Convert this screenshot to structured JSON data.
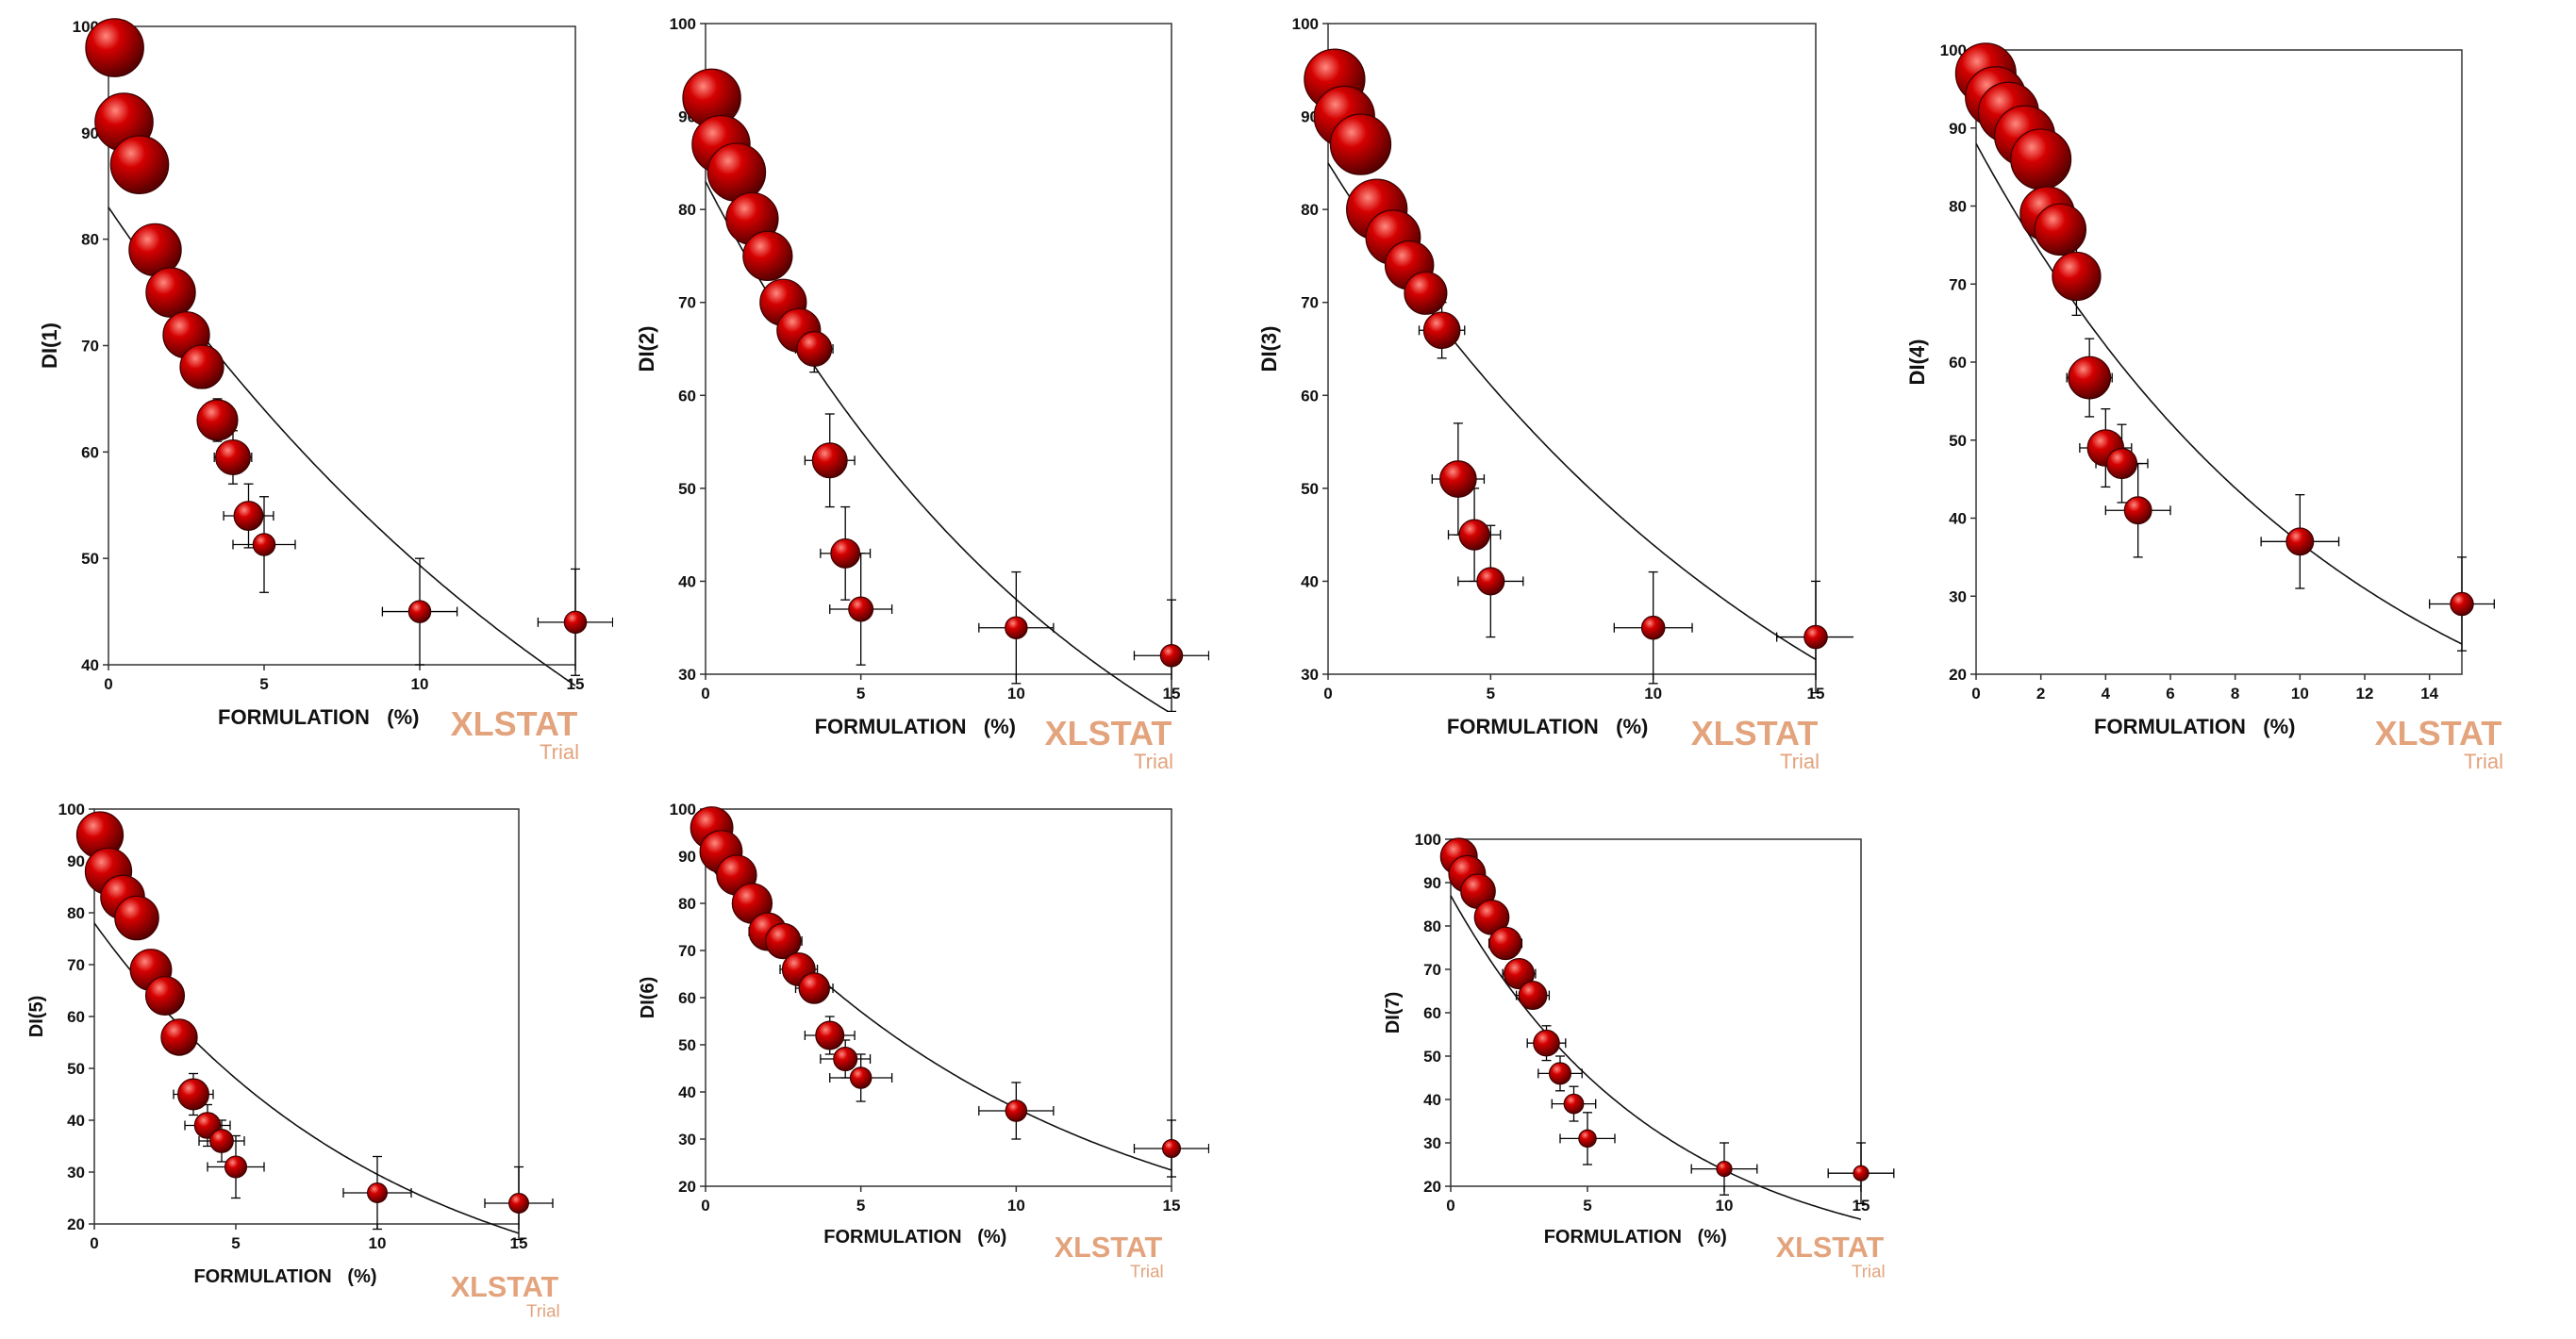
{
  "colors": {
    "bubble": "#d40000",
    "bubble_light": "#ff8a80",
    "bubble_dark": "#5a0000",
    "line": "#111111",
    "frame": "#333333",
    "watermark": "#e3a37c"
  },
  "watermark": {
    "brand": "XLSTAT",
    "edition": "Trial"
  },
  "chart_data": [
    {
      "id": "c1",
      "type": "scatter",
      "title": "",
      "xlabel": "FORMULATION   (%)",
      "ylabel": "DI(1)",
      "xlim": [
        0,
        15
      ],
      "ylim": [
        40,
        100
      ],
      "xticks": [
        0,
        5,
        10,
        15
      ],
      "yticks": [
        40,
        50,
        60,
        70,
        80,
        90,
        100
      ],
      "points": [
        {
          "x": 0.2,
          "y": 98,
          "r": 1.0,
          "ex": 0.6,
          "ey": 2
        },
        {
          "x": 0.5,
          "y": 91,
          "r": 1.0,
          "ex": 0.6,
          "ey": 2
        },
        {
          "x": 1.0,
          "y": 87,
          "r": 1.0,
          "ex": 0.6,
          "ey": 2
        },
        {
          "x": 1.5,
          "y": 79,
          "r": 0.9,
          "ex": 0.6,
          "ey": 2
        },
        {
          "x": 2.0,
          "y": 75,
          "r": 0.85,
          "ex": 0.6,
          "ey": 2
        },
        {
          "x": 2.5,
          "y": 71,
          "r": 0.8,
          "ex": 0.6,
          "ey": 2
        },
        {
          "x": 3.0,
          "y": 68,
          "r": 0.75,
          "ex": 0.6,
          "ey": 2
        },
        {
          "x": 3.5,
          "y": 63,
          "r": 0.7,
          "ex": 0.6,
          "ey": 2
        },
        {
          "x": 4.0,
          "y": 59.5,
          "r": 0.6,
          "ex": 0.6,
          "ey": 2.5
        },
        {
          "x": 4.5,
          "y": 54,
          "r": 0.5,
          "ex": 0.8,
          "ey": 3
        },
        {
          "x": 5.0,
          "y": 51.3,
          "r": 0.38,
          "ex": 1.0,
          "ey": 4.5
        },
        {
          "x": 10.0,
          "y": 45,
          "r": 0.38,
          "ex": 1.2,
          "ey": 5
        },
        {
          "x": 15.0,
          "y": 44,
          "r": 0.38,
          "ex": 1.2,
          "ey": 5
        }
      ],
      "curve": {
        "a": 83,
        "k": 0.052
      }
    },
    {
      "id": "c2",
      "type": "scatter",
      "title": "",
      "xlabel": "FORMULATION   (%)",
      "ylabel": "DI(2)",
      "xlim": [
        0,
        15
      ],
      "ylim": [
        30,
        100
      ],
      "xticks": [
        0,
        5,
        10,
        15
      ],
      "yticks": [
        30,
        40,
        50,
        60,
        70,
        80,
        90,
        100
      ],
      "points": [
        {
          "x": 0.2,
          "y": 92,
          "r": 1.0,
          "ex": 0.6,
          "ey": 2
        },
        {
          "x": 0.5,
          "y": 87,
          "r": 1.0,
          "ex": 0.6,
          "ey": 2
        },
        {
          "x": 1.0,
          "y": 84,
          "r": 1.0,
          "ex": 0.6,
          "ey": 2
        },
        {
          "x": 1.5,
          "y": 79,
          "r": 0.9,
          "ex": 0.6,
          "ey": 2
        },
        {
          "x": 2.0,
          "y": 75,
          "r": 0.85,
          "ex": 0.6,
          "ey": 2
        },
        {
          "x": 2.5,
          "y": 70,
          "r": 0.8,
          "ex": 0.6,
          "ey": 2
        },
        {
          "x": 3.0,
          "y": 67,
          "r": 0.75,
          "ex": 0.6,
          "ey": 2
        },
        {
          "x": 3.5,
          "y": 65,
          "r": 0.6,
          "ex": 0.6,
          "ey": 2.5
        },
        {
          "x": 4.0,
          "y": 53,
          "r": 0.6,
          "ex": 0.8,
          "ey": 5
        },
        {
          "x": 4.5,
          "y": 43,
          "r": 0.5,
          "ex": 0.8,
          "ey": 5
        },
        {
          "x": 5.0,
          "y": 37,
          "r": 0.42,
          "ex": 1.0,
          "ey": 6
        },
        {
          "x": 10.0,
          "y": 35,
          "r": 0.38,
          "ex": 1.2,
          "ey": 6
        },
        {
          "x": 15.0,
          "y": 32,
          "r": 0.38,
          "ex": 1.2,
          "ey": 6
        }
      ],
      "curve": {
        "a": 83,
        "k": 0.078
      }
    },
    {
      "id": "c3",
      "type": "scatter",
      "title": "",
      "xlabel": "FORMULATION   (%)",
      "ylabel": "DI(3)",
      "xlim": [
        0,
        15
      ],
      "ylim": [
        30,
        100
      ],
      "xticks": [
        0,
        5,
        10,
        15
      ],
      "yticks": [
        30,
        40,
        50,
        60,
        70,
        80,
        90,
        100
      ],
      "points": [
        {
          "x": 0.2,
          "y": 94,
          "r": 1.0,
          "ex": 0.6,
          "ey": 2
        },
        {
          "x": 0.5,
          "y": 90,
          "r": 1.0,
          "ex": 0.6,
          "ey": 2
        },
        {
          "x": 1.0,
          "y": 87,
          "r": 1.0,
          "ex": 0.6,
          "ey": 2
        },
        {
          "x": 1.5,
          "y": 80,
          "r": 1.0,
          "ex": 0.6,
          "ey": 2
        },
        {
          "x": 2.0,
          "y": 77,
          "r": 0.9,
          "ex": 0.6,
          "ey": 2
        },
        {
          "x": 2.5,
          "y": 74,
          "r": 0.8,
          "ex": 0.6,
          "ey": 2
        },
        {
          "x": 3.0,
          "y": 71,
          "r": 0.7,
          "ex": 0.6,
          "ey": 2
        },
        {
          "x": 3.5,
          "y": 67,
          "r": 0.6,
          "ex": 0.7,
          "ey": 3
        },
        {
          "x": 4.0,
          "y": 51,
          "r": 0.6,
          "ex": 0.8,
          "ey": 6
        },
        {
          "x": 4.5,
          "y": 45,
          "r": 0.5,
          "ex": 0.8,
          "ey": 5
        },
        {
          "x": 5.0,
          "y": 40,
          "r": 0.45,
          "ex": 1.0,
          "ey": 6
        },
        {
          "x": 10.0,
          "y": 35,
          "r": 0.38,
          "ex": 1.2,
          "ey": 6
        },
        {
          "x": 15.0,
          "y": 34,
          "r": 0.38,
          "ex": 1.2,
          "ey": 6
        }
      ],
      "curve": {
        "a": 85,
        "k": 0.066
      }
    },
    {
      "id": "c4",
      "type": "scatter",
      "title": "",
      "xlabel": "FORMULATION   (%)",
      "ylabel": "DI(4)",
      "xlim": [
        0,
        15
      ],
      "ylim": [
        20,
        100
      ],
      "xticks": [
        0,
        2,
        4,
        6,
        8,
        10,
        12,
        14
      ],
      "yticks": [
        20,
        30,
        40,
        50,
        60,
        70,
        80,
        90,
        100
      ],
      "points": [
        {
          "x": 0.3,
          "y": 97,
          "r": 1.0,
          "ex": 0.5,
          "ey": 2
        },
        {
          "x": 0.6,
          "y": 94,
          "r": 1.0,
          "ex": 0.5,
          "ey": 2
        },
        {
          "x": 1.0,
          "y": 92,
          "r": 1.0,
          "ex": 0.5,
          "ey": 2
        },
        {
          "x": 1.5,
          "y": 89,
          "r": 1.0,
          "ex": 0.5,
          "ey": 2
        },
        {
          "x": 2.0,
          "y": 86,
          "r": 1.0,
          "ex": 0.5,
          "ey": 2
        },
        {
          "x": 2.2,
          "y": 79,
          "r": 0.9,
          "ex": 0.6,
          "ey": 2
        },
        {
          "x": 2.6,
          "y": 77,
          "r": 0.85,
          "ex": 0.6,
          "ey": 2
        },
        {
          "x": 3.1,
          "y": 71,
          "r": 0.8,
          "ex": 0.6,
          "ey": 5
        },
        {
          "x": 3.5,
          "y": 58,
          "r": 0.7,
          "ex": 0.7,
          "ey": 5
        },
        {
          "x": 4.0,
          "y": 49,
          "r": 0.6,
          "ex": 0.8,
          "ey": 5
        },
        {
          "x": 4.5,
          "y": 47,
          "r": 0.5,
          "ex": 0.8,
          "ey": 5
        },
        {
          "x": 5.0,
          "y": 41,
          "r": 0.45,
          "ex": 1.0,
          "ey": 6
        },
        {
          "x": 10.0,
          "y": 37,
          "r": 0.45,
          "ex": 1.2,
          "ey": 6
        },
        {
          "x": 15.0,
          "y": 29,
          "r": 0.38,
          "ex": 1.0,
          "ey": 6
        }
      ],
      "curve": {
        "a": 88,
        "k": 0.087
      }
    },
    {
      "id": "c5",
      "type": "scatter",
      "title": "",
      "xlabel": "FORMULATION   (%)",
      "ylabel": "DI(5)",
      "xlim": [
        0,
        15
      ],
      "ylim": [
        20,
        100
      ],
      "xticks": [
        0,
        5,
        10,
        15
      ],
      "yticks": [
        20,
        30,
        40,
        50,
        60,
        70,
        80,
        90,
        100
      ],
      "points": [
        {
          "x": 0.2,
          "y": 95,
          "r": 0.9,
          "ex": 0.5,
          "ey": 2
        },
        {
          "x": 0.5,
          "y": 88,
          "r": 0.9,
          "ex": 0.5,
          "ey": 2
        },
        {
          "x": 1.0,
          "y": 83,
          "r": 0.85,
          "ex": 0.5,
          "ey": 2
        },
        {
          "x": 1.5,
          "y": 79,
          "r": 0.85,
          "ex": 0.5,
          "ey": 2
        },
        {
          "x": 2.0,
          "y": 69,
          "r": 0.8,
          "ex": 0.6,
          "ey": 2
        },
        {
          "x": 2.5,
          "y": 64,
          "r": 0.75,
          "ex": 0.6,
          "ey": 2
        },
        {
          "x": 3.0,
          "y": 56,
          "r": 0.7,
          "ex": 0.6,
          "ey": 2.5
        },
        {
          "x": 3.5,
          "y": 45,
          "r": 0.6,
          "ex": 0.7,
          "ey": 4
        },
        {
          "x": 4.0,
          "y": 39,
          "r": 0.5,
          "ex": 0.8,
          "ey": 4
        },
        {
          "x": 4.5,
          "y": 36,
          "r": 0.45,
          "ex": 0.8,
          "ey": 4
        },
        {
          "x": 5.0,
          "y": 31,
          "r": 0.42,
          "ex": 1.0,
          "ey": 6
        },
        {
          "x": 10.0,
          "y": 26,
          "r": 0.38,
          "ex": 1.2,
          "ey": 7
        },
        {
          "x": 15.0,
          "y": 24,
          "r": 0.38,
          "ex": 1.2,
          "ey": 7
        }
      ],
      "curve": {
        "a": 78,
        "k": 0.097
      }
    },
    {
      "id": "c6",
      "type": "scatter",
      "title": "",
      "xlabel": "FORMULATION   (%)",
      "ylabel": "DI(6)",
      "xlim": [
        0,
        15
      ],
      "ylim": [
        20,
        100
      ],
      "xticks": [
        0,
        5,
        10,
        15
      ],
      "yticks": [
        20,
        30,
        40,
        50,
        60,
        70,
        80,
        90,
        100
      ],
      "points": [
        {
          "x": 0.2,
          "y": 96,
          "r": 0.9,
          "ex": 0.5,
          "ey": 2
        },
        {
          "x": 0.5,
          "y": 91,
          "r": 0.9,
          "ex": 0.5,
          "ey": 2
        },
        {
          "x": 1.0,
          "y": 86,
          "r": 0.85,
          "ex": 0.5,
          "ey": 2
        },
        {
          "x": 1.5,
          "y": 80,
          "r": 0.85,
          "ex": 0.5,
          "ey": 2
        },
        {
          "x": 2.0,
          "y": 74,
          "r": 0.8,
          "ex": 0.6,
          "ey": 2
        },
        {
          "x": 2.5,
          "y": 72,
          "r": 0.75,
          "ex": 0.6,
          "ey": 2
        },
        {
          "x": 3.0,
          "y": 66,
          "r": 0.7,
          "ex": 0.6,
          "ey": 2
        },
        {
          "x": 3.5,
          "y": 62,
          "r": 0.65,
          "ex": 0.6,
          "ey": 2.5
        },
        {
          "x": 4.0,
          "y": 52,
          "r": 0.6,
          "ex": 0.8,
          "ey": 4
        },
        {
          "x": 4.5,
          "y": 47,
          "r": 0.5,
          "ex": 0.8,
          "ey": 4
        },
        {
          "x": 5.0,
          "y": 43,
          "r": 0.45,
          "ex": 1.0,
          "ey": 5
        },
        {
          "x": 10.0,
          "y": 36,
          "r": 0.45,
          "ex": 1.2,
          "ey": 6
        },
        {
          "x": 15.0,
          "y": 28,
          "r": 0.38,
          "ex": 1.2,
          "ey": 6
        }
      ],
      "curve": {
        "a": 89,
        "k": 0.089
      }
    },
    {
      "id": "c7",
      "type": "scatter",
      "title": "",
      "xlabel": "FORMULATION   (%)",
      "ylabel": "DI(7)",
      "xlim": [
        0,
        15
      ],
      "ylim": [
        20,
        100
      ],
      "xticks": [
        0,
        5,
        10,
        15
      ],
      "yticks": [
        20,
        30,
        40,
        50,
        60,
        70,
        80,
        90,
        100
      ],
      "points": [
        {
          "x": 0.3,
          "y": 96,
          "r": 0.85,
          "ex": 0.5,
          "ey": 2
        },
        {
          "x": 0.6,
          "y": 92,
          "r": 0.85,
          "ex": 0.5,
          "ey": 2
        },
        {
          "x": 1.0,
          "y": 88,
          "r": 0.8,
          "ex": 0.5,
          "ey": 2
        },
        {
          "x": 1.5,
          "y": 82,
          "r": 0.8,
          "ex": 0.5,
          "ey": 2
        },
        {
          "x": 2.0,
          "y": 76,
          "r": 0.75,
          "ex": 0.6,
          "ey": 2
        },
        {
          "x": 2.5,
          "y": 69,
          "r": 0.7,
          "ex": 0.6,
          "ey": 2
        },
        {
          "x": 3.0,
          "y": 64,
          "r": 0.65,
          "ex": 0.6,
          "ey": 2.5
        },
        {
          "x": 3.5,
          "y": 53,
          "r": 0.6,
          "ex": 0.7,
          "ey": 4
        },
        {
          "x": 4.0,
          "y": 46,
          "r": 0.5,
          "ex": 0.8,
          "ey": 4
        },
        {
          "x": 4.5,
          "y": 39,
          "r": 0.45,
          "ex": 0.8,
          "ey": 4
        },
        {
          "x": 5.0,
          "y": 31,
          "r": 0.4,
          "ex": 1.0,
          "ey": 6
        },
        {
          "x": 10.0,
          "y": 24,
          "r": 0.3,
          "ex": 1.2,
          "ey": 6
        },
        {
          "x": 15.0,
          "y": 23,
          "r": 0.3,
          "ex": 1.2,
          "ey": 7
        }
      ],
      "curve": {
        "a": 87,
        "k": 0.13
      }
    }
  ]
}
